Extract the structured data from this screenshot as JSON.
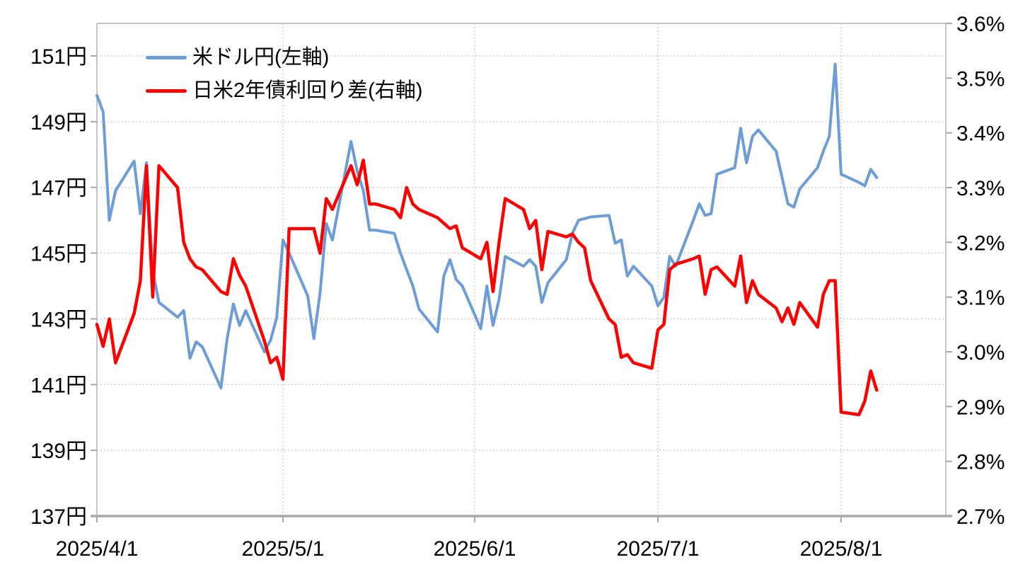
{
  "chart_data": {
    "type": "line",
    "title": "",
    "x_unit": "date",
    "x": [
      "4/1",
      "4/2",
      "4/3",
      "4/4",
      "4/7",
      "4/8",
      "4/9",
      "4/10",
      "4/11",
      "4/14",
      "4/15",
      "4/16",
      "4/17",
      "4/18",
      "4/21",
      "4/22",
      "4/23",
      "4/24",
      "4/25",
      "4/28",
      "4/29",
      "4/30",
      "5/1",
      "5/2",
      "5/5",
      "5/6",
      "5/7",
      "5/8",
      "5/9",
      "5/12",
      "5/13",
      "5/14",
      "5/15",
      "5/16",
      "5/19",
      "5/20",
      "5/21",
      "5/22",
      "5/23",
      "5/26",
      "5/27",
      "5/28",
      "5/29",
      "5/30",
      "6/2",
      "6/3",
      "6/4",
      "6/5",
      "6/6",
      "6/9",
      "6/10",
      "6/11",
      "6/12",
      "6/13",
      "6/16",
      "6/17",
      "6/18",
      "6/19",
      "6/20",
      "6/23",
      "6/24",
      "6/25",
      "6/26",
      "6/27",
      "6/30",
      "7/1",
      "7/2",
      "7/3",
      "7/4",
      "7/7",
      "7/8",
      "7/9",
      "7/10",
      "7/11",
      "7/14",
      "7/15",
      "7/16",
      "7/17",
      "7/18",
      "7/21",
      "7/22",
      "7/23",
      "7/24",
      "7/25",
      "7/28",
      "7/29",
      "7/30",
      "7/31",
      "8/1",
      "8/4",
      "8/5",
      "8/6",
      "8/7"
    ],
    "series": [
      {
        "name": "米ドル円(左軸)",
        "axis": "left",
        "color": "#6C9DD6",
        "stroke_width": 4,
        "values": [
          149.8,
          149.3,
          146.0,
          146.9,
          147.8,
          146.2,
          147.75,
          144.45,
          143.5,
          143.05,
          143.25,
          141.8,
          142.3,
          142.15,
          140.9,
          142.4,
          143.45,
          142.8,
          143.25,
          142.0,
          142.35,
          143.05,
          145.4,
          145.0,
          143.7,
          142.4,
          143.8,
          145.9,
          145.4,
          148.4,
          147.5,
          146.9,
          145.7,
          145.7,
          145.6,
          145.0,
          144.5,
          144.0,
          143.3,
          142.6,
          144.3,
          144.8,
          144.2,
          144.0,
          142.7,
          144.0,
          142.8,
          143.6,
          144.9,
          144.6,
          144.8,
          144.6,
          143.5,
          144.1,
          144.8,
          145.6,
          146.0,
          146.05,
          146.1,
          146.15,
          145.3,
          145.4,
          144.3,
          144.6,
          144.0,
          143.4,
          143.65,
          144.9,
          144.6,
          146.0,
          146.5,
          146.15,
          146.2,
          147.4,
          147.6,
          148.8,
          147.75,
          148.55,
          148.75,
          148.1,
          147.3,
          146.5,
          146.4,
          146.95,
          147.6,
          148.1,
          148.55,
          150.75,
          147.4,
          147.15,
          147.05,
          147.55,
          147.3
        ]
      },
      {
        "name": "日米2年債利回り差(右軸)",
        "axis": "right",
        "color": "#FF0000",
        "stroke_width": 4.5,
        "values": [
          3.05,
          3.01,
          3.06,
          2.98,
          3.07,
          3.13,
          3.34,
          3.1,
          3.34,
          3.3,
          3.2,
          3.17,
          3.155,
          3.15,
          3.11,
          3.105,
          3.17,
          3.14,
          3.12,
          3.02,
          2.98,
          2.99,
          2.95,
          3.225,
          3.225,
          3.225,
          3.18,
          3.28,
          3.26,
          3.34,
          3.305,
          3.35,
          3.27,
          3.27,
          3.26,
          3.245,
          3.3,
          3.27,
          3.26,
          3.245,
          3.235,
          3.225,
          3.23,
          3.19,
          3.17,
          3.2,
          3.11,
          3.2,
          3.28,
          3.26,
          3.225,
          3.24,
          3.15,
          3.22,
          3.21,
          3.215,
          3.2,
          3.19,
          3.13,
          3.06,
          3.05,
          2.99,
          2.995,
          2.98,
          2.97,
          3.04,
          3.05,
          3.15,
          3.16,
          3.17,
          3.175,
          3.105,
          3.15,
          3.155,
          3.12,
          3.175,
          3.09,
          3.13,
          3.105,
          3.08,
          3.055,
          3.08,
          3.05,
          3.09,
          3.045,
          3.105,
          3.13,
          3.13,
          2.89,
          2.885,
          2.91,
          2.965,
          2.93
        ]
      }
    ],
    "left_axis": {
      "min": 137,
      "max": 151,
      "step": 2,
      "unit": "円",
      "tick_values": [
        137,
        139,
        141,
        143,
        145,
        147,
        149,
        151
      ],
      "tick_labels": [
        "137円",
        "139円",
        "141円",
        "143円",
        "145円",
        "147円",
        "149円",
        "151円"
      ]
    },
    "right_axis": {
      "min": 2.7,
      "max": 3.6,
      "step": 0.1,
      "unit": "%",
      "tick_values": [
        2.7,
        2.8,
        2.9,
        3.0,
        3.1,
        3.2,
        3.3,
        3.4,
        3.5,
        3.6
      ],
      "tick_labels": [
        "2.7%",
        "2.8%",
        "2.9%",
        "3.0%",
        "3.1%",
        "3.2%",
        "3.3%",
        "3.4%",
        "3.5%",
        "3.6%"
      ]
    },
    "x_axis": {
      "tick_labels": [
        "2025/4/1",
        "2025/5/1",
        "2025/6/1",
        "2025/7/1",
        "2025/8/1"
      ],
      "tick_months": [
        4,
        5,
        6,
        7,
        8
      ]
    },
    "grid": "dotted",
    "legend_position": "top-left-inside",
    "colors": {
      "grid_line": "#C9C9C9",
      "spine": "#C6C6C6",
      "bottom_spine": "#A8A8A8",
      "tick": "#A8A8A8",
      "label_text": "#000000",
      "background": "#FFFFFF"
    }
  },
  "legend": {
    "items": [
      {
        "label": "米ドル円(左軸)",
        "swatch": "usdjpy-swatch"
      },
      {
        "label": "日米2年債利回り差(右軸)",
        "swatch": "spread-swatch"
      }
    ]
  }
}
